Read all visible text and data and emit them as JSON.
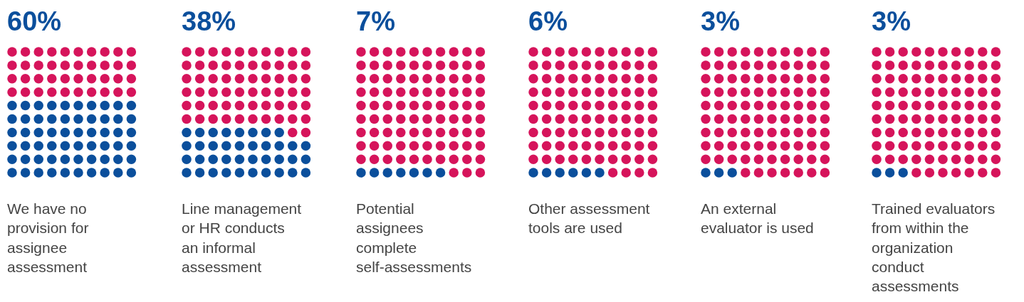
{
  "chart_data": {
    "type": "other",
    "categories": [
      "We have no\nprovision for\nassignee\nassessment",
      "Line management\nor HR conducts\nan informal\nassessment",
      "Potential\nassignees\ncomplete\nself-assessments",
      "Other assessment\ntools are used",
      "An external\nevaluator is used",
      "Trained evaluators\nfrom within the\norganization\nconduct\nassessments"
    ],
    "color": "#0b4f9c",
    "values": [
      60,
      38,
      7,
      6,
      3,
      3
    ],
    "value_labels": [
      "60%",
      "38%",
      "7%",
      "6%",
      "3%",
      "3%"
    ]
  }
}
